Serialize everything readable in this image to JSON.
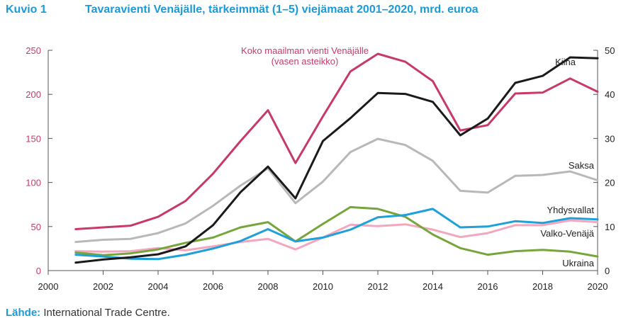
{
  "figure": {
    "label": "Kuvio 1",
    "title": "Tavaravienti Venäjälle, tärkeimmät (1–5) viejämaat 2001–2020, mrd. euroa",
    "source_label": "Lähde:",
    "source_text": "International Trade Centre."
  },
  "chart_data": {
    "type": "line",
    "title": "Tavaravienti Venäjälle, tärkeimmät (1–5) viejämaat 2001–2020, mrd. euroa",
    "xlabel": "",
    "ylabel": "",
    "xlim": [
      2000,
      2020
    ],
    "x_ticks": [
      2000,
      2002,
      2004,
      2006,
      2008,
      2010,
      2012,
      2014,
      2016,
      2018,
      2020
    ],
    "ylim_left": [
      0,
      250
    ],
    "y_ticks_left": [
      0,
      50,
      100,
      150,
      200,
      250
    ],
    "ylim_right": [
      0,
      50
    ],
    "y_ticks_right": [
      0,
      10,
      20,
      30,
      40,
      50
    ],
    "left_axis_color": "#c7396b",
    "grid": false,
    "legend": "inline labels",
    "x": [
      2001,
      2002,
      2003,
      2004,
      2005,
      2006,
      2007,
      2008,
      2009,
      2010,
      2011,
      2012,
      2013,
      2014,
      2015,
      2016,
      2017,
      2018,
      2019,
      2020
    ],
    "series": [
      {
        "name": "Koko maailman vienti Venäjälle",
        "note": "(vasen asteikko)",
        "axis": "left",
        "color": "#c7396b",
        "values": [
          47,
          49,
          51,
          61,
          79,
          110,
          147,
          182,
          122,
          175,
          226,
          246,
          237,
          215,
          159,
          165,
          201,
          202,
          218,
          203
        ]
      },
      {
        "name": "Kiina",
        "axis": "right",
        "color": "#1a1a1a",
        "values": [
          1.8,
          2.5,
          3.0,
          3.7,
          5.5,
          10.3,
          17.8,
          23.6,
          16.4,
          29.4,
          34.6,
          40.3,
          40.1,
          38.3,
          30.7,
          34.5,
          42.6,
          44.2,
          48.4,
          48.2
        ]
      },
      {
        "name": "Saksa",
        "axis": "right",
        "color": "#b8b8b8",
        "values": [
          6.5,
          7.0,
          7.2,
          8.5,
          10.7,
          14.7,
          19.3,
          23.2,
          15.3,
          20.2,
          26.9,
          29.9,
          28.5,
          24.9,
          18.1,
          17.7,
          21.5,
          21.7,
          22.5,
          20.5
        ]
      },
      {
        "name": "Yhdysvallat",
        "axis": "right",
        "color": "#1ea0d8",
        "values": [
          3.6,
          3.2,
          2.7,
          2.6,
          3.6,
          5.0,
          6.7,
          9.4,
          6.6,
          7.5,
          9.3,
          12.1,
          12.6,
          14.0,
          9.8,
          10.0,
          11.2,
          10.8,
          11.9,
          11.6
        ]
      },
      {
        "name": "Valko-Venäjä",
        "axis": "right",
        "color": "#f2a7bf",
        "values": [
          4.4,
          4.3,
          4.4,
          5.1,
          4.6,
          5.5,
          6.5,
          7.2,
          4.8,
          7.5,
          10.4,
          10.1,
          10.5,
          9.3,
          7.6,
          8.5,
          10.3,
          10.3,
          11.4,
          11.0
        ]
      },
      {
        "name": "Ukraina",
        "axis": "right",
        "color": "#76a63b",
        "values": [
          4.1,
          3.5,
          3.9,
          4.8,
          6.3,
          7.5,
          9.8,
          11.0,
          6.6,
          10.6,
          14.4,
          14.0,
          12.2,
          8.2,
          5.1,
          3.6,
          4.4,
          4.7,
          4.3,
          3.2
        ]
      }
    ]
  }
}
